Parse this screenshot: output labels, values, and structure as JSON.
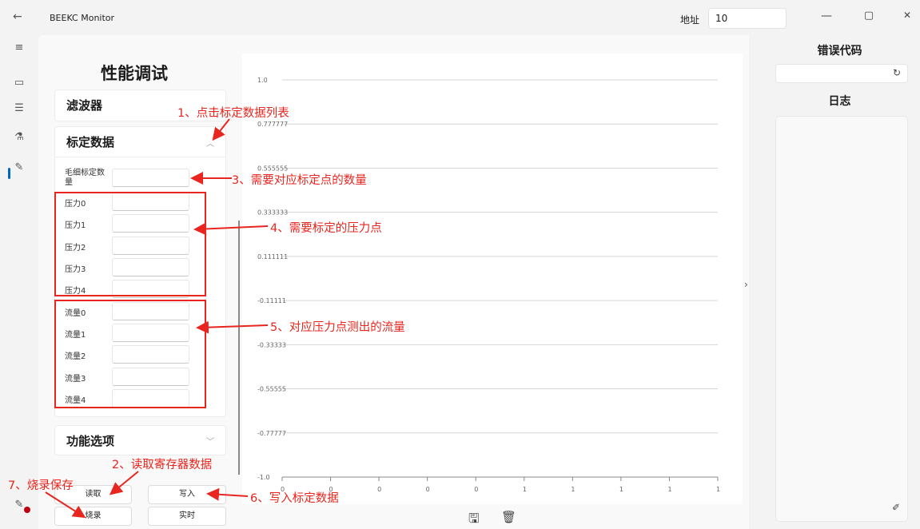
{
  "window": {
    "title": "BEEKC Monitor",
    "address_label": "地址",
    "address_value": "10",
    "minimize": "—",
    "maximize": "▢",
    "close": "✕",
    "back": "←"
  },
  "nav": {
    "icons": [
      "menu-icon",
      "device-icon",
      "list-icon",
      "flask-icon",
      "pen-icon",
      "recorder-icon"
    ]
  },
  "page": {
    "title": "性能调试"
  },
  "sections": {
    "filter": "滤波器",
    "calibration": "标定数据",
    "functions": "功能选项"
  },
  "calibration": {
    "count_label": "毛细标定数量",
    "pressure": [
      "压力0",
      "压力1",
      "压力2",
      "压力3",
      "压力4"
    ],
    "flow": [
      "流量0",
      "流量1",
      "流量2",
      "流量3",
      "流量4"
    ]
  },
  "buttons": {
    "read": "读取",
    "write": "写入",
    "burn": "烧录",
    "realtime": "实时"
  },
  "right_panel": {
    "error_title": "错误代码",
    "log_title": "日志"
  },
  "chart_data": {
    "type": "line",
    "y_ticks": [
      "1.0",
      "0.777777",
      "0.555555",
      "0.333333",
      "0.111111",
      "-0.11111",
      "-0.33333",
      "-0.55555",
      "-0.77777",
      "-1.0"
    ],
    "x_ticks": [
      "0",
      "0",
      "0",
      "0",
      "0",
      "1",
      "1",
      "1",
      "1",
      "1"
    ],
    "ylim": [
      -1.0,
      1.0
    ],
    "series": []
  },
  "annotations": {
    "a1": "1、点击标定数据列表",
    "a2": "2、读取寄存器数据",
    "a3": "3、需要对应标定点的数量",
    "a4": "4、需要标定的压力点",
    "a5": "5、对应压力点测出的流量",
    "a6": "6、写入标定数据",
    "a7": "7、烧录保存"
  },
  "colors": {
    "annotation": "#e8251e",
    "accent": "#0067c0"
  }
}
